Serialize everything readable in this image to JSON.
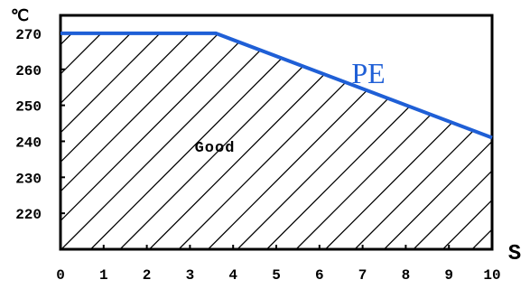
{
  "chart_data": {
    "type": "line",
    "ylabel": "℃",
    "xlabel": "S",
    "xlim": [
      0,
      10
    ],
    "ylim": [
      210,
      275
    ],
    "x_ticks": [
      0,
      1,
      2,
      3,
      4,
      5,
      6,
      7,
      8,
      9,
      10
    ],
    "y_ticks": [
      220,
      230,
      240,
      250,
      260,
      270
    ],
    "grid": false,
    "series": [
      {
        "name": "PE",
        "color": "#1f5fd6",
        "x": [
          0,
          3.6,
          10
        ],
        "y": [
          270,
          270,
          241
        ]
      }
    ],
    "regions": [
      {
        "label": "Good",
        "fill": "hatched",
        "bounded_by": "PE"
      }
    ]
  }
}
